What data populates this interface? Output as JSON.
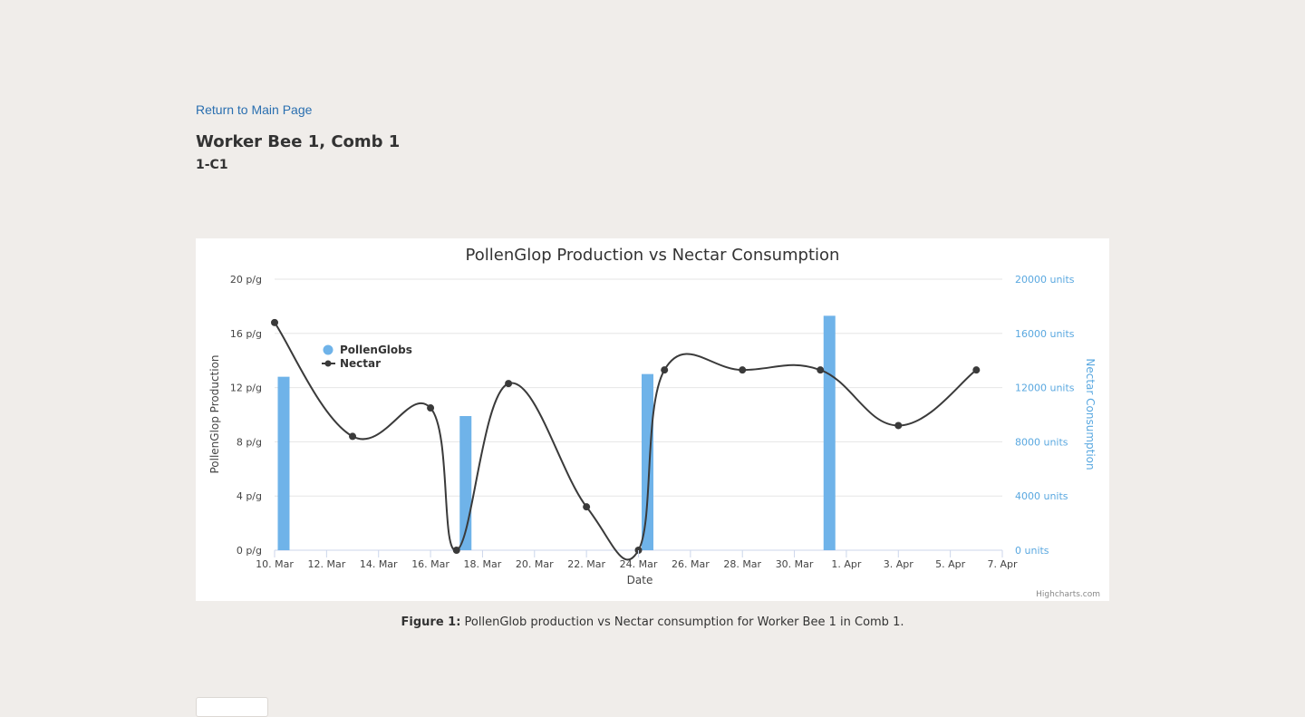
{
  "nav": {
    "return_label": "Return to Main Page"
  },
  "header": {
    "title": "Worker Bee 1, Comb 1",
    "subtitle": "1-C1"
  },
  "caption": {
    "label": "Figure 1:",
    "text": " PollenGlob production vs Nectar consumption for Worker Bee 1 in Comb 1."
  },
  "credit": "Highcharts.com",
  "colors": {
    "bar": "#6fb3e9",
    "line": "#3a3a3a",
    "right_axis": "#5aa8e0",
    "grid": "#e6e6e6"
  },
  "chart_data": {
    "type": "bar",
    "title": "PollenGlop Production vs Nectar Consumption",
    "xlabel": "Date",
    "ylabel": "PollenGlop Production",
    "y2label": "Nectar Consumption",
    "x_range": [
      "2024-03-10",
      "2024-04-07"
    ],
    "x_ticks": [
      "10. Mar",
      "12. Mar",
      "14. Mar",
      "16. Mar",
      "18. Mar",
      "20. Mar",
      "22. Mar",
      "24. Mar",
      "26. Mar",
      "28. Mar",
      "30. Mar",
      "1. Apr",
      "3. Apr",
      "5. Apr",
      "7. Apr"
    ],
    "ylim": [
      0,
      20
    ],
    "y_ticks": [
      "0 p/g",
      "4 p/g",
      "8 p/g",
      "12 p/g",
      "16 p/g",
      "20 p/g"
    ],
    "y2lim": [
      0,
      20000
    ],
    "y2_ticks": [
      "0 units",
      "4000 units",
      "8000 units",
      "12000 units",
      "16000 units",
      "20000 units"
    ],
    "grid": true,
    "legend": {
      "placement": "top-left",
      "items": [
        "PollenGlobs",
        "Nectar"
      ]
    },
    "series": [
      {
        "name": "PollenGlobs",
        "type": "bar",
        "axis": "left",
        "points": [
          {
            "x": "2024-03-10",
            "y": 12.8
          },
          {
            "x": "2024-03-17",
            "y": 9.9
          },
          {
            "x": "2024-03-24",
            "y": 13.0
          },
          {
            "x": "2024-03-31",
            "y": 17.3
          }
        ]
      },
      {
        "name": "Nectar",
        "type": "spline",
        "axis": "right",
        "points": [
          {
            "x": "2024-03-10",
            "y": 16800
          },
          {
            "x": "2024-03-13",
            "y": 8400
          },
          {
            "x": "2024-03-16",
            "y": 10500
          },
          {
            "x": "2024-03-17",
            "y": 0
          },
          {
            "x": "2024-03-19",
            "y": 12300
          },
          {
            "x": "2024-03-22",
            "y": 3200
          },
          {
            "x": "2024-03-24",
            "y": 0
          },
          {
            "x": "2024-03-25",
            "y": 13300
          },
          {
            "x": "2024-03-28",
            "y": 13300
          },
          {
            "x": "2024-03-31",
            "y": 13300
          },
          {
            "x": "2024-04-03",
            "y": 9200
          },
          {
            "x": "2024-04-06",
            "y": 13300
          }
        ]
      }
    ]
  }
}
